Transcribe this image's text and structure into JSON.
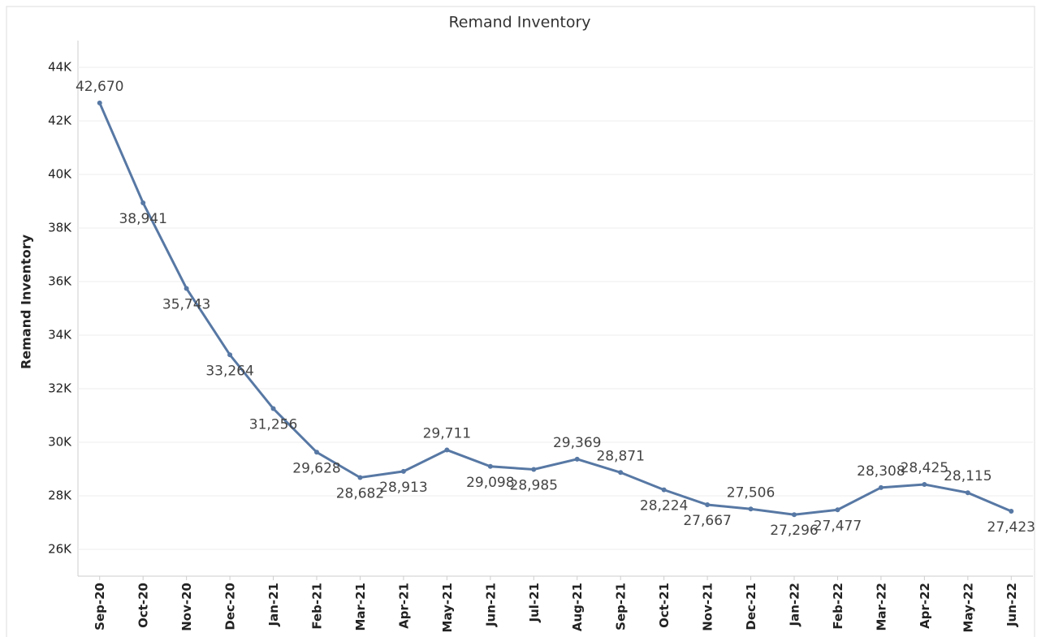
{
  "chart_data": {
    "type": "line",
    "title": "Remand Inventory",
    "y_label": "Remand Inventory",
    "categories": [
      "Sep-20",
      "Oct-20",
      "Nov-20",
      "Dec-20",
      "Jan-21",
      "Feb-21",
      "Mar-21",
      "Apr-21",
      "May-21",
      "Jun-21",
      "Jul-21",
      "Aug-21",
      "Sep-21",
      "Oct-21",
      "Nov-21",
      "Dec-21",
      "Jan-22",
      "Feb-22",
      "Mar-22",
      "Apr-22",
      "May-22",
      "Jun-22"
    ],
    "series": [
      {
        "name": "Remand Inventory",
        "color": "#5778a4",
        "values": [
          42670,
          38941,
          35743,
          33264,
          31256,
          29628,
          28682,
          28913,
          29711,
          29098,
          28985,
          29369,
          28871,
          28224,
          27667,
          27506,
          27296,
          27477,
          28308,
          28425,
          28115,
          27423
        ],
        "value_labels": [
          "42,670",
          "38,941",
          "35,743",
          "33,264",
          "31,256",
          "29,628",
          "28,682",
          "28,913",
          "29,711",
          "29,098",
          "28,985",
          "29,369",
          "28,871",
          "28,224",
          "27,667",
          "27,506",
          "27,296",
          "27,477",
          "28,308",
          "28,425",
          "28,115",
          "27,423"
        ]
      }
    ],
    "ylim": [
      25000,
      45000
    ],
    "yticks": [
      {
        "value": 26000,
        "label": "26K"
      },
      {
        "value": 28000,
        "label": "28K"
      },
      {
        "value": 30000,
        "label": "30K"
      },
      {
        "value": 32000,
        "label": "32K"
      },
      {
        "value": 34000,
        "label": "34K"
      },
      {
        "value": 36000,
        "label": "36K"
      },
      {
        "value": 38000,
        "label": "38K"
      },
      {
        "value": 40000,
        "label": "40K"
      },
      {
        "value": 42000,
        "label": "42K"
      },
      {
        "value": 44000,
        "label": "44K"
      }
    ],
    "grid": true
  }
}
